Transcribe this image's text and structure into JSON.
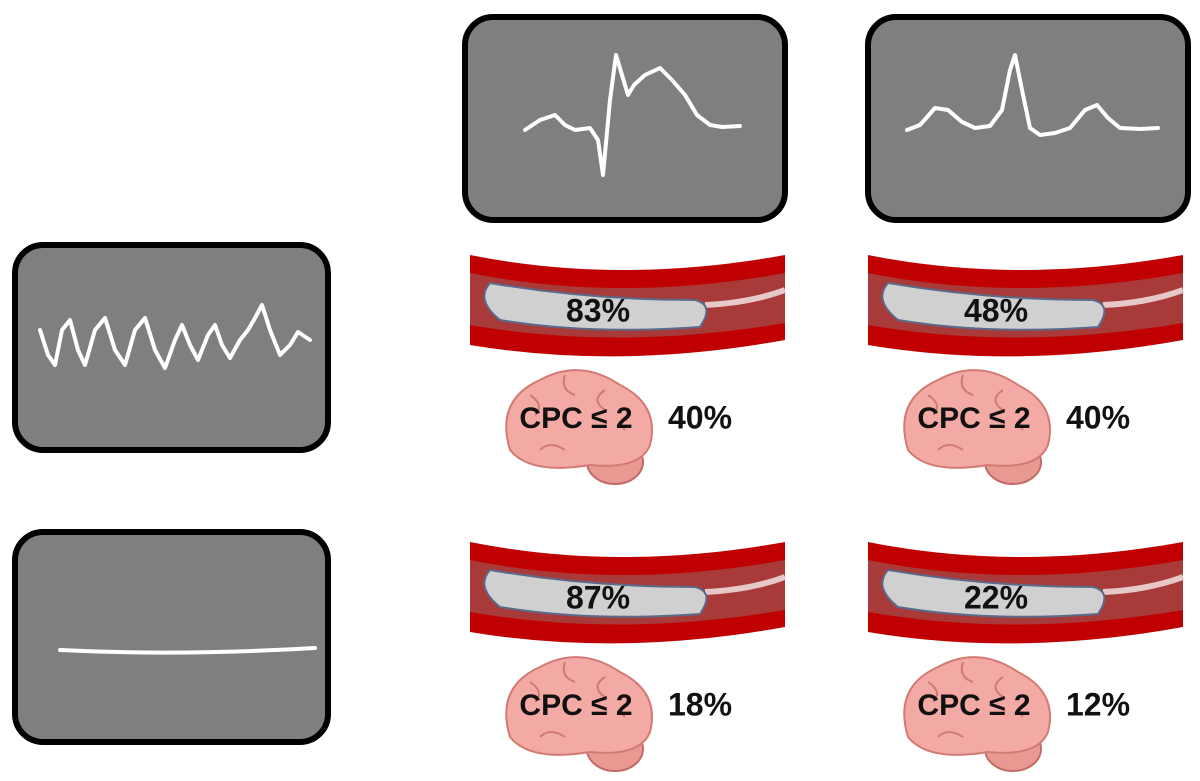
{
  "cells": [
    {
      "balloon": "83%",
      "brain_label": "CPC ≤ 2",
      "outcome": "40%"
    },
    {
      "balloon": "48%",
      "brain_label": "CPC ≤ 2",
      "outcome": "40%"
    },
    {
      "balloon": "87%",
      "brain_label": "CPC ≤ 2",
      "outcome": "18%"
    },
    {
      "balloon": "22%",
      "brain_label": "CPC ≤ 2",
      "outcome": "12%"
    }
  ]
}
